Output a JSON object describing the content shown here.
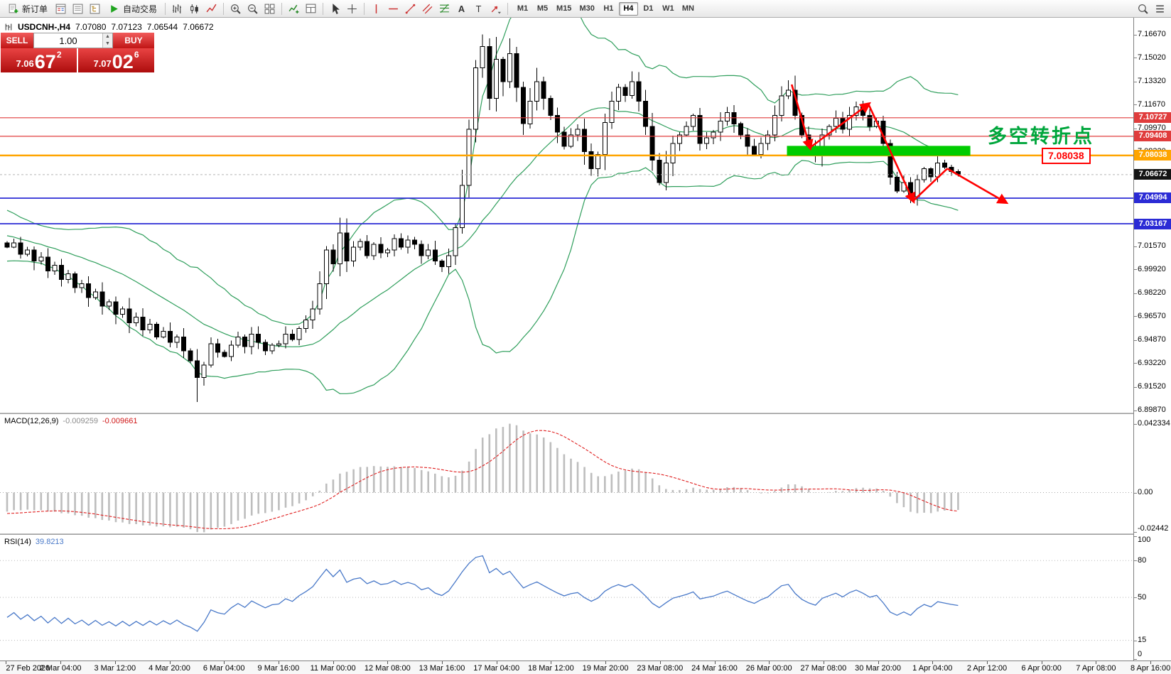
{
  "toolbar": {
    "items": [
      {
        "type": "button",
        "icon": "new-order",
        "label": "新订单"
      },
      {
        "type": "icon",
        "icon": "market-watch"
      },
      {
        "type": "icon",
        "icon": "data-window"
      },
      {
        "type": "icon",
        "icon": "navigator"
      },
      {
        "type": "button",
        "icon": "autotrading",
        "label": "自动交易"
      },
      {
        "type": "sep"
      },
      {
        "type": "icon",
        "icon": "bar-chart"
      },
      {
        "type": "icon",
        "icon": "candlestick-chart"
      },
      {
        "type": "icon",
        "icon": "line-chart"
      },
      {
        "type": "sep"
      },
      {
        "type": "icon",
        "icon": "zoom-in"
      },
      {
        "type": "icon",
        "icon": "zoom-out"
      },
      {
        "type": "icon",
        "icon": "tile-windows"
      },
      {
        "type": "sep"
      },
      {
        "type": "icon",
        "icon": "indicators"
      },
      {
        "type": "icon",
        "icon": "layout"
      },
      {
        "type": "sep"
      },
      {
        "type": "icon",
        "icon": "cursor"
      },
      {
        "type": "icon",
        "icon": "crosshair"
      },
      {
        "type": "sep"
      },
      {
        "type": "icon",
        "icon": "vertical-line"
      },
      {
        "type": "icon",
        "icon": "horizontal-line"
      },
      {
        "type": "icon",
        "icon": "trendline"
      },
      {
        "type": "icon",
        "icon": "channel"
      },
      {
        "type": "icon",
        "icon": "fibonacci"
      },
      {
        "type": "icon",
        "icon": "text"
      },
      {
        "type": "icon",
        "icon": "text-label"
      },
      {
        "type": "icon",
        "icon": "arrows"
      },
      {
        "type": "sep"
      },
      {
        "type": "timeframes"
      },
      {
        "type": "spacer"
      },
      {
        "type": "icon",
        "icon": "search"
      },
      {
        "type": "icon",
        "icon": "window-list"
      }
    ],
    "timeframes": [
      "M1",
      "M5",
      "M15",
      "M30",
      "H1",
      "H4",
      "D1",
      "W1",
      "MN"
    ],
    "active_timeframe": "H4"
  },
  "chart": {
    "header": {
      "symbol": "USDCNH-,H4",
      "open": "7.07080",
      "high": "7.07123",
      "low": "7.06544",
      "close": "7.06672"
    },
    "trade_panel": {
      "sell_label": "SELL",
      "buy_label": "BUY",
      "lot": "1.00",
      "sell_price_prefix": "7.06",
      "sell_price_big": "67",
      "sell_price_sup": "2",
      "buy_price_prefix": "7.07",
      "buy_price_big": "02",
      "buy_price_sup": "6"
    },
    "annotation_text": "多空转折点",
    "level_label_text": "7.08038",
    "price_axis": {
      "labels": [
        {
          "text": "7.16670",
          "price": 7.1667
        },
        {
          "text": "7.15020",
          "price": 7.1502
        },
        {
          "text": "7.13320",
          "price": 7.1332
        },
        {
          "text": "7.11670",
          "price": 7.1167
        },
        {
          "text": "7.09970",
          "price": 7.0997
        },
        {
          "text": "7.08320",
          "price": 7.0832
        },
        {
          "text": "7.01570",
          "price": 7.0157
        },
        {
          "text": "6.99920",
          "price": 6.9992
        },
        {
          "text": "6.98220",
          "price": 6.9822
        },
        {
          "text": "6.96570",
          "price": 6.9657
        },
        {
          "text": "6.94870",
          "price": 6.9487
        },
        {
          "text": "6.93220",
          "price": 6.9322
        },
        {
          "text": "6.91520",
          "price": 6.9152
        },
        {
          "text": "6.89870",
          "price": 6.8987
        }
      ],
      "badges": [
        {
          "text": "7.10727",
          "price": 7.10727,
          "bg": "#e03c3c"
        },
        {
          "text": "7.09408",
          "price": 7.09408,
          "bg": "#e03c3c"
        },
        {
          "text": "7.08038",
          "price": 7.08038,
          "bg": "#ffa500"
        },
        {
          "text": "7.06672",
          "price": 7.06672,
          "bg": "#141414"
        },
        {
          "text": "7.04994",
          "price": 7.04994,
          "bg": "#2b2bd5"
        },
        {
          "text": "7.03167",
          "price": 7.03167,
          "bg": "#2b2bd5"
        }
      ]
    }
  },
  "macd_panel": {
    "label": "MACD(12,26,9)",
    "value_main": "-0.009259",
    "value_signal": "-0.009661",
    "scale": [
      {
        "text": "0.042334",
        "v": 0.042334
      },
      {
        "text": "0.00",
        "v": 0
      },
      {
        "text": "-0.02442",
        "v": -0.02442
      }
    ]
  },
  "rsi_panel": {
    "label": "RSI(14)",
    "value": "39.8213",
    "scale": [
      {
        "text": "100",
        "v": 100
      },
      {
        "text": "80",
        "v": 80
      },
      {
        "text": "50",
        "v": 50
      },
      {
        "text": "15",
        "v": 15
      },
      {
        "text": "0",
        "v": 0
      }
    ],
    "level_lines": [
      80,
      50,
      15
    ]
  },
  "time_axis": {
    "labels": [
      "27 Feb 2020",
      "2 Mar 04:00",
      "3 Mar 12:00",
      "4 Mar 20:00",
      "6 Mar 04:00",
      "9 Mar 16:00",
      "11 Mar 00:00",
      "12 Mar 08:00",
      "13 Mar 16:00",
      "17 Mar 04:00",
      "18 Mar 12:00",
      "19 Mar 20:00",
      "23 Mar 08:00",
      "24 Mar 16:00",
      "26 Mar 00:00",
      "27 Mar 08:00",
      "30 Mar 20:00",
      "1 Apr 04:00",
      "2 Apr 12:00",
      "6 Apr 00:00",
      "7 Apr 08:00",
      "8 Apr 16:00"
    ]
  },
  "chart_data": {
    "type": "candlestick",
    "symbol": "USDCNH-",
    "timeframe": "H4",
    "title": "USDCNH- H4 with Bollinger Bands, MACD(12,26,9), RSI(14)",
    "ohlc_current": {
      "open": 7.0708,
      "high": 7.07123,
      "low": 7.06544,
      "close": 7.06672
    },
    "price_axis_anchor": {
      "top_price": 7.1667,
      "bottom_price": 6.8987
    },
    "warmup_closes": [
      7.062,
      7.058,
      7.06,
      7.054,
      7.056,
      7.05,
      7.052,
      7.046,
      7.048,
      7.042,
      7.044,
      7.038,
      7.04,
      7.034,
      7.036,
      7.03,
      7.032,
      7.026,
      7.028,
      7.022,
      7.024,
      7.018,
      7.02,
      7.014,
      7.016,
      7.012,
      7.014,
      7.01,
      7.016,
      7.018
    ],
    "closes": [
      7.015,
      7.018,
      7.01,
      7.013,
      7.005,
      7.008,
      6.998,
      7.002,
      6.992,
      6.996,
      6.986,
      6.989,
      6.979,
      6.983,
      6.973,
      6.976,
      6.967,
      6.971,
      6.961,
      6.965,
      6.956,
      6.96,
      6.951,
      6.955,
      6.947,
      6.951,
      6.941,
      6.934,
      6.922,
      6.931,
      6.946,
      6.94,
      6.937,
      6.945,
      6.951,
      6.944,
      6.953,
      6.947,
      6.941,
      6.945,
      6.946,
      6.953,
      6.949,
      6.957,
      6.963,
      6.971,
      6.989,
      7.013,
      7.003,
      7.025,
      7.005,
      7.015,
      7.019,
      7.009,
      7.017,
      7.011,
      7.013,
      7.021,
      7.015,
      7.02,
      7.017,
      7.009,
      7.013,
      7.005,
      7.001,
      7.009,
      7.029,
      7.059,
      7.099,
      7.143,
      7.158,
      7.121,
      7.149,
      7.133,
      7.153,
      7.129,
      7.103,
      7.119,
      7.133,
      7.121,
      7.109,
      7.097,
      7.087,
      7.095,
      7.099,
      7.083,
      7.071,
      7.081,
      7.104,
      7.119,
      7.129,
      7.123,
      7.133,
      7.119,
      7.101,
      7.077,
      7.061,
      7.075,
      7.089,
      7.095,
      7.101,
      7.109,
      7.089,
      7.093,
      7.097,
      7.105,
      7.111,
      7.103,
      7.095,
      7.087,
      7.081,
      7.089,
      7.095,
      7.109,
      7.123,
      7.127,
      7.109,
      7.095,
      7.086,
      7.08,
      7.095,
      7.101,
      7.107,
      7.099,
      7.109,
      7.115,
      7.109,
      7.101,
      7.105,
      7.089,
      7.065,
      7.055,
      7.061,
      7.051,
      7.063,
      7.071,
      7.065,
      7.075,
      7.072,
      7.069,
      7.0667
    ],
    "wick_overrides": {
      "28": {
        "low": 6.9046
      },
      "49": {
        "high": 7.036
      },
      "70": {
        "high": 7.1667
      },
      "72": {
        "high": 7.165
      },
      "74": {
        "high": 7.164
      },
      "115": {
        "high": 7.134
      },
      "133": {
        "low": 7.0465
      }
    },
    "bollinger": {
      "period": 20,
      "deviation": 2,
      "color": "#2e9e5b"
    },
    "horizontal_lines": [
      {
        "price": 7.10727,
        "color": "#e03c3c",
        "width": 1.2
      },
      {
        "price": 7.09408,
        "color": "#e03c3c",
        "width": 1.2
      },
      {
        "price": 7.08038,
        "color": "#ffa500",
        "width": 2.5
      },
      {
        "price": 7.04994,
        "color": "#2b2bd5",
        "width": 1.8
      },
      {
        "price": 7.03167,
        "color": "#2b2bd5",
        "width": 1.8
      }
    ],
    "current_price_line": {
      "price": 7.06672,
      "color": "#b5b5b5"
    },
    "support_zone": {
      "i_start": 114.8,
      "i_end": 141.8,
      "p_top": 7.0872,
      "p_bottom": 7.0802,
      "color": "#00cc00"
    },
    "trend_arrows": {
      "color": "#ff0000",
      "points": [
        {
          "i": 115.5,
          "p": 7.131
        },
        {
          "i": 118.2,
          "p": 7.086
        },
        {
          "i": 126.8,
          "p": 7.117
        },
        {
          "i": 133.4,
          "p": 7.048
        },
        {
          "i": 138.4,
          "p": 7.071
        },
        {
          "i": 147.0,
          "p": 7.047
        }
      ],
      "head_at": [
        1,
        2,
        3,
        5
      ]
    },
    "macd": {
      "fast": 12,
      "slow": 26,
      "signal": 9,
      "current_main": -0.009259,
      "current_signal": -0.009661,
      "scale_max": 0.042334,
      "scale_min": -0.02442,
      "histogram_color": "#bdbdbd",
      "signal_color": "#e02020"
    },
    "rsi": {
      "period": 14,
      "current": 39.8213,
      "color": "#4878c8",
      "levels": [
        80,
        50,
        15
      ]
    }
  }
}
